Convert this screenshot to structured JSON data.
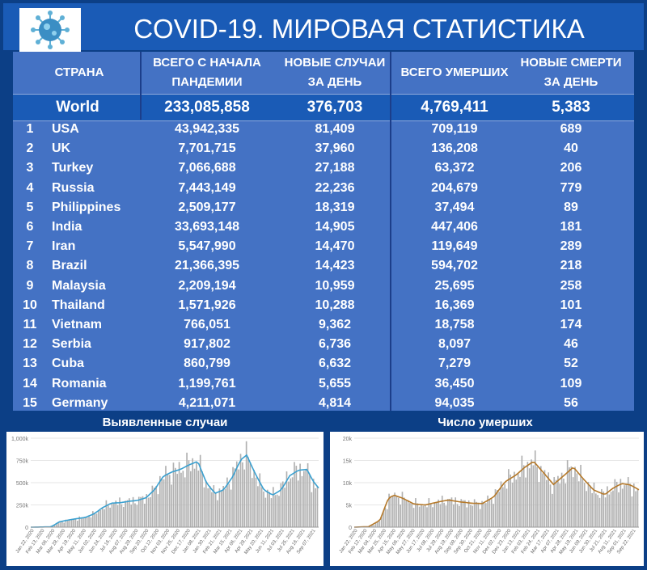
{
  "title": "COVID-19. МИРОВАЯ СТАТИСТИКА",
  "logo_icon": "virus-icon",
  "table": {
    "headers": {
      "country": "СТРАНА",
      "total_line1": "ВСЕГО С НАЧАЛА",
      "total_line2": "ПАНДЕМИИ",
      "new_line1": "НОВЫЕ СЛУЧАИ",
      "new_line2": "ЗА ДЕНЬ",
      "deaths": "ВСЕГО УМЕРШИХ",
      "new_deaths_line1": "НОВЫЕ СМЕРТИ",
      "new_deaths_line2": "ЗА ДЕНЬ"
    },
    "world": {
      "name": "World",
      "total": "233,085,858",
      "new": "376,703",
      "deaths": "4,769,411",
      "new_deaths": "5,383"
    },
    "rows": [
      {
        "rank": "1",
        "country": "USA",
        "total": "43,942,335",
        "new": "81,409",
        "deaths": "709,119",
        "new_deaths": "689"
      },
      {
        "rank": "2",
        "country": "UK",
        "total": "7,701,715",
        "new": "37,960",
        "deaths": "136,208",
        "new_deaths": "40"
      },
      {
        "rank": "3",
        "country": "Turkey",
        "total": "7,066,688",
        "new": "27,188",
        "deaths": "63,372",
        "new_deaths": "206"
      },
      {
        "rank": "4",
        "country": "Russia",
        "total": "7,443,149",
        "new": "22,236",
        "deaths": "204,679",
        "new_deaths": "779"
      },
      {
        "rank": "5",
        "country": "Philippines",
        "total": "2,509,177",
        "new": "18,319",
        "deaths": "37,494",
        "new_deaths": "89"
      },
      {
        "rank": "6",
        "country": "India",
        "total": "33,693,148",
        "new": "14,905",
        "deaths": "447,406",
        "new_deaths": "181"
      },
      {
        "rank": "7",
        "country": "Iran",
        "total": "5,547,990",
        "new": "14,470",
        "deaths": "119,649",
        "new_deaths": "289"
      },
      {
        "rank": "8",
        "country": "Brazil",
        "total": "21,366,395",
        "new": "14,423",
        "deaths": "594,702",
        "new_deaths": "218"
      },
      {
        "rank": "9",
        "country": "Malaysia",
        "total": "2,209,194",
        "new": "10,959",
        "deaths": "25,695",
        "new_deaths": "258"
      },
      {
        "rank": "10",
        "country": "Thailand",
        "total": "1,571,926",
        "new": "10,288",
        "deaths": "16,369",
        "new_deaths": "101"
      },
      {
        "rank": "11",
        "country": "Vietnam",
        "total": "766,051",
        "new": "9,362",
        "deaths": "18,758",
        "new_deaths": "174"
      },
      {
        "rank": "12",
        "country": "Serbia",
        "total": "917,802",
        "new": "6,736",
        "deaths": "8,097",
        "new_deaths": "46"
      },
      {
        "rank": "13",
        "country": "Cuba",
        "total": "860,799",
        "new": "6,632",
        "deaths": "7,279",
        "new_deaths": "52"
      },
      {
        "rank": "14",
        "country": "Romania",
        "total": "1,199,761",
        "new": "5,655",
        "deaths": "36,450",
        "new_deaths": "109"
      },
      {
        "rank": "15",
        "country": "Germany",
        "total": "4,211,071",
        "new": "4,814",
        "deaths": "94,035",
        "new_deaths": "56"
      }
    ]
  },
  "colors": {
    "background": "#0c3f86",
    "title_bar": "#1a5bb6",
    "table": "#4472c4",
    "cases_line": "#3aa0d0",
    "deaths_line": "#b5792a",
    "bars": "#b0b0b0"
  },
  "chart_data": [
    {
      "type": "bar",
      "title": "Выявленные случаи",
      "yticks": [
        "0",
        "250k",
        "500k",
        "750k",
        "1,000k"
      ],
      "ytick_values": [
        0,
        250000,
        500000,
        750000,
        1000000
      ],
      "ylim": [
        0,
        1000000
      ],
      "xticks": [
        "Jan 22, 2020",
        "Feb 13, 2020",
        "Mar 06, 2020",
        "Mar 28, 2020",
        "Apr 19, 2020",
        "May 11, 2020",
        "Jun 02, 2020",
        "Jun 24, 2020",
        "Jul 16, 2020",
        "Aug 07, 2020",
        "Aug 29, 2020",
        "Sep 20, 2020",
        "Oct 12, 2020",
        "Nov 03, 2020",
        "Nov 25, 2020",
        "Dec 17, 2020",
        "Jan 08, 2021",
        "Jan 30, 2021",
        "Feb 21, 2021",
        "Mar 15, 2021",
        "Apr 06, 2021",
        "Apr 28, 2021",
        "May 20, 2021",
        "Jun 11, 2021",
        "Jul 03, 2021",
        "Jul 25, 2021",
        "Aug 16, 2021",
        "Sep 07, 2021"
      ],
      "moving_average_points": [
        [
          0,
          0
        ],
        [
          0.04,
          2000
        ],
        [
          0.07,
          3000
        ],
        [
          0.1,
          60000
        ],
        [
          0.13,
          80000
        ],
        [
          0.16,
          95000
        ],
        [
          0.19,
          110000
        ],
        [
          0.22,
          150000
        ],
        [
          0.25,
          220000
        ],
        [
          0.28,
          270000
        ],
        [
          0.31,
          275000
        ],
        [
          0.34,
          290000
        ],
        [
          0.37,
          300000
        ],
        [
          0.4,
          330000
        ],
        [
          0.43,
          420000
        ],
        [
          0.46,
          570000
        ],
        [
          0.49,
          620000
        ],
        [
          0.52,
          650000
        ],
        [
          0.55,
          700000
        ],
        [
          0.58,
          740000
        ],
        [
          0.61,
          500000
        ],
        [
          0.64,
          380000
        ],
        [
          0.67,
          420000
        ],
        [
          0.7,
          560000
        ],
        [
          0.73,
          760000
        ],
        [
          0.75,
          810000
        ],
        [
          0.78,
          600000
        ],
        [
          0.81,
          420000
        ],
        [
          0.84,
          360000
        ],
        [
          0.87,
          420000
        ],
        [
          0.9,
          580000
        ],
        [
          0.93,
          640000
        ],
        [
          0.96,
          650000
        ],
        [
          0.98,
          520000
        ],
        [
          1.0,
          440000
        ]
      ]
    },
    {
      "type": "bar",
      "title": "Число умерших",
      "yticks": [
        "0",
        "5k",
        "10k",
        "15k",
        "20k"
      ],
      "ytick_values": [
        0,
        5000,
        10000,
        15000,
        20000
      ],
      "ylim": [
        0,
        20000
      ],
      "xticks": [
        "Jan 22, 2020",
        "Feb 12, 2020",
        "Mar 04, 2020",
        "Mar 25, 2020",
        "Apr 15, 2020",
        "May 06, 2020",
        "May 27, 2020",
        "Jun 17, 2020",
        "Jul 08, 2020",
        "Jul 29, 2020",
        "Aug 19, 2020",
        "Sep 09, 2020",
        "Sep 30, 2020",
        "Oct 21, 2020",
        "Nov 11, 2020",
        "Dec 02, 2020",
        "Dec 23, 2020",
        "Jan 13, 2021",
        "Feb 03, 2021",
        "Feb 24, 2021",
        "Mar 17, 2021",
        "Apr 07, 2021",
        "Apr 28, 2021",
        "May 19, 2021",
        "Jun 09, 2021",
        "Jun 30, 2021",
        "Jul 21, 2021",
        "Aug 11, 2021",
        "Sep 01, 2021",
        "Sep 22, 2021"
      ],
      "moving_average_points": [
        [
          0,
          0
        ],
        [
          0.05,
          100
        ],
        [
          0.09,
          1500
        ],
        [
          0.12,
          6500
        ],
        [
          0.14,
          7200
        ],
        [
          0.17,
          6500
        ],
        [
          0.21,
          5200
        ],
        [
          0.25,
          5000
        ],
        [
          0.29,
          5600
        ],
        [
          0.33,
          6100
        ],
        [
          0.37,
          5700
        ],
        [
          0.41,
          5400
        ],
        [
          0.45,
          5300
        ],
        [
          0.49,
          6800
        ],
        [
          0.53,
          10200
        ],
        [
          0.57,
          11800
        ],
        [
          0.6,
          13500
        ],
        [
          0.63,
          14800
        ],
        [
          0.66,
          12600
        ],
        [
          0.7,
          9600
        ],
        [
          0.74,
          11800
        ],
        [
          0.77,
          13500
        ],
        [
          0.8,
          11200
        ],
        [
          0.84,
          8400
        ],
        [
          0.88,
          7300
        ],
        [
          0.91,
          8800
        ],
        [
          0.94,
          9800
        ],
        [
          0.97,
          9500
        ],
        [
          1.0,
          8400
        ]
      ]
    }
  ]
}
